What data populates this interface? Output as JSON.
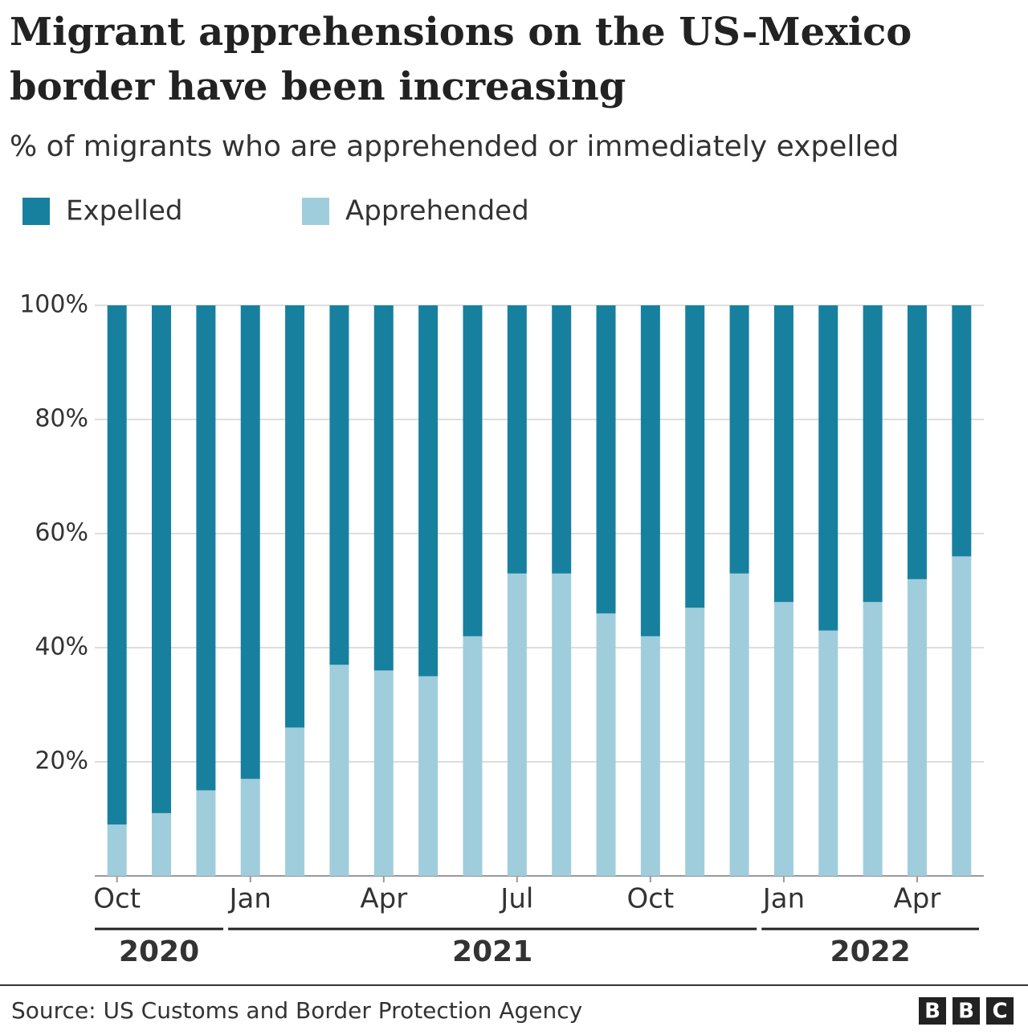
{
  "chart_data": {
    "type": "stacked_bar",
    "title_lines": [
      "Migrant apprehensions on the US-Mexico",
      "border have been increasing"
    ],
    "subtitle": "% of migrants who are apprehended or immediately expelled",
    "categories": [
      "Oct",
      null,
      null,
      "Jan",
      null,
      null,
      "Apr",
      null,
      null,
      "Jul",
      null,
      null,
      "Oct",
      null,
      null,
      "Jan",
      null,
      null,
      "Apr",
      null
    ],
    "years": [
      "2020",
      "2021",
      "2022"
    ],
    "series": [
      {
        "name": "Apprehended",
        "color": "#a0cddb",
        "values": [
          9,
          11,
          15,
          17,
          26,
          37,
          36,
          35,
          42,
          53,
          53,
          46,
          42,
          47,
          53,
          48,
          43,
          48,
          52,
          56
        ]
      },
      {
        "name": "Expelled",
        "color": "#17809f",
        "values": [
          91,
          89,
          85,
          83,
          74,
          63,
          64,
          65,
          58,
          47,
          47,
          54,
          58,
          53,
          47,
          52,
          57,
          52,
          48,
          44
        ]
      }
    ],
    "ylim": [
      0,
      100
    ],
    "yticks": [
      {
        "value": 20,
        "label": "20%"
      },
      {
        "value": 40,
        "label": "40%"
      },
      {
        "value": 60,
        "label": "60%"
      },
      {
        "value": 80,
        "label": "80%"
      },
      {
        "value": 100,
        "label": "100%"
      }
    ],
    "grid": true,
    "source": "Source: US Customs and Border Protection Agency"
  }
}
